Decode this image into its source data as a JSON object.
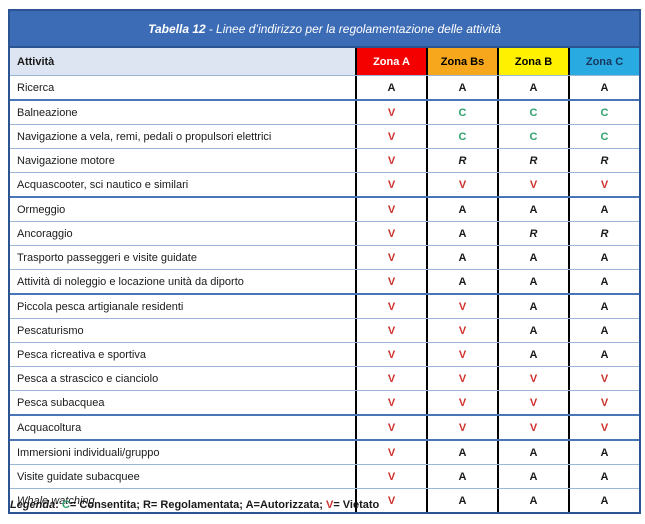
{
  "title": {
    "bold": "Tabella 12",
    "rest": "- Linee d’indirizzo per la regolamentazione delle attività"
  },
  "header": {
    "activity_label": "Attività",
    "zones": [
      {
        "label": "Zona A",
        "bg": "#F50000",
        "fg": "#FFFFFF"
      },
      {
        "label": "Zona Bs",
        "bg": "#F6A71C",
        "fg": "#000000"
      },
      {
        "label": "Zona B",
        "bg": "#FFF100",
        "fg": "#000000"
      },
      {
        "label": "Zona C",
        "bg": "#29ABE2",
        "fg": "#17375E"
      }
    ]
  },
  "value_colors": {
    "A": "#1A1A1A",
    "R": "#1A1A1A",
    "V": "#CE312B",
    "C": "#2FA36B"
  },
  "rows": [
    {
      "activity": "Ricerca",
      "values": [
        "A",
        "A",
        "A",
        "A"
      ],
      "group_start": false,
      "italic": false
    },
    {
      "activity": "Balneazione",
      "values": [
        "V",
        "C",
        "C",
        "C"
      ],
      "group_start": true,
      "italic": false
    },
    {
      "activity": "Navigazione a vela, remi, pedali o propulsori elettrici",
      "values": [
        "V",
        "C",
        "C",
        "C"
      ],
      "group_start": false,
      "italic": false
    },
    {
      "activity": "Navigazione motore",
      "values": [
        "V",
        "R",
        "R",
        "R"
      ],
      "group_start": false,
      "italic": false
    },
    {
      "activity": "Acquascooter, sci nautico e similari",
      "values": [
        "V",
        "V",
        "V",
        "V"
      ],
      "group_start": false,
      "italic": false
    },
    {
      "activity": "Ormeggio",
      "values": [
        "V",
        "A",
        "A",
        "A"
      ],
      "group_start": true,
      "italic": false
    },
    {
      "activity": "Ancoraggio",
      "values": [
        "V",
        "A",
        "R",
        "R"
      ],
      "group_start": false,
      "italic": false
    },
    {
      "activity": "Trasporto passeggeri e visite guidate",
      "values": [
        "V",
        "A",
        "A",
        "A"
      ],
      "group_start": false,
      "italic": false
    },
    {
      "activity": "Attività di noleggio e locazione unità da diporto",
      "values": [
        "V",
        "A",
        "A",
        "A"
      ],
      "group_start": false,
      "italic": false
    },
    {
      "activity": "Piccola pesca artigianale residenti",
      "values": [
        "V",
        "V",
        "A",
        "A"
      ],
      "group_start": true,
      "italic": false
    },
    {
      "activity": "Pescaturismo",
      "values": [
        "V",
        "V",
        "A",
        "A"
      ],
      "group_start": false,
      "italic": false
    },
    {
      "activity": "Pesca ricreativa e sportiva",
      "values": [
        "V",
        "V",
        "A",
        "A"
      ],
      "group_start": false,
      "italic": false
    },
    {
      "activity": "Pesca a strascico e cianciolo",
      "values": [
        "V",
        "V",
        "V",
        "V"
      ],
      "group_start": false,
      "italic": false
    },
    {
      "activity": "Pesca subacquea",
      "values": [
        "V",
        "V",
        "V",
        "V"
      ],
      "group_start": false,
      "italic": false
    },
    {
      "activity": "Acquacoltura",
      "values": [
        "V",
        "V",
        "V",
        "V"
      ],
      "group_start": true,
      "italic": false
    },
    {
      "activity": "Immersioni individuali/gruppo",
      "values": [
        "V",
        "A",
        "A",
        "A"
      ],
      "group_start": true,
      "italic": false
    },
    {
      "activity": "Visite guidate subacquee",
      "values": [
        "V",
        "A",
        "A",
        "A"
      ],
      "group_start": false,
      "italic": false
    },
    {
      "activity": "Whale watching",
      "values": [
        "V",
        "A",
        "A",
        "A"
      ],
      "group_start": false,
      "italic": true
    }
  ],
  "legend": {
    "label": "Legenda",
    "separator": ": ",
    "items": [
      {
        "key": "C",
        "desc": "= Consentita; ",
        "color": "#2FA36B"
      },
      {
        "key": "R",
        "desc": "= Regolamentata; ",
        "color": "#1A1A1A"
      },
      {
        "key": "A",
        "desc": "=Autorizzata; ",
        "color": "#1A1A1A"
      },
      {
        "key": "V",
        "desc": "= Vietato",
        "color": "#CE312B"
      }
    ]
  }
}
